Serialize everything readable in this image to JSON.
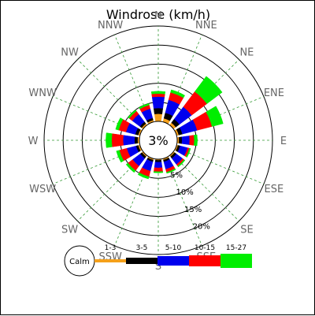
{
  "chart_data": {
    "type": "windrose",
    "title": "Windrose (km/h)",
    "calm_label": "3%",
    "calm_percent": 3,
    "directions": [
      "N",
      "NNE",
      "NE",
      "ENE",
      "E",
      "ESE",
      "SE",
      "SSE",
      "S",
      "SSW",
      "SW",
      "WSW",
      "W",
      "WNW",
      "NW",
      "NNW"
    ],
    "ring_labels": [
      "5%",
      "10%",
      "15%",
      "20%"
    ],
    "rings": [
      5,
      10,
      15,
      20
    ],
    "max_percent": 25,
    "speed_bins": [
      {
        "label": "1-3",
        "color": "#f5a01a"
      },
      {
        "label": "3-5",
        "color": "#000000"
      },
      {
        "label": "5-10",
        "color": "#0000ee"
      },
      {
        "label": "10-15",
        "color": "#ff0000"
      },
      {
        "label": "15-27",
        "color": "#00ee00"
      }
    ],
    "series": [
      {
        "name": "1-3",
        "values": [
          2.0,
          1.0,
          0.8,
          0.6,
          0.5,
          0.4,
          0.4,
          0.4,
          0.3,
          0.4,
          0.4,
          0.5,
          0.5,
          0.5,
          0.5,
          0.5
        ]
      },
      {
        "name": "3-5",
        "values": [
          1.5,
          1.5,
          1.2,
          1.0,
          0.8,
          0.6,
          0.6,
          0.5,
          0.5,
          0.5,
          0.6,
          0.6,
          0.8,
          0.8,
          0.6,
          0.6
        ]
      },
      {
        "name": "5-10",
        "values": [
          3.0,
          3.5,
          4.0,
          4.0,
          2.0,
          2.0,
          2.0,
          2.0,
          1.5,
          2.5,
          2.5,
          2.5,
          3.0,
          2.5,
          2.5,
          2.5
        ]
      },
      {
        "name": "10-15",
        "values": [
          0.8,
          2.0,
          5.0,
          4.0,
          1.2,
          0.5,
          0.5,
          0.8,
          1.0,
          1.5,
          1.5,
          2.0,
          3.0,
          2.0,
          1.0,
          1.0
        ]
      },
      {
        "name": "15-27",
        "values": [
          0.6,
          0.7,
          5.0,
          3.0,
          0.8,
          0.3,
          0.3,
          0.3,
          0.3,
          0.6,
          0.6,
          0.8,
          1.5,
          0.8,
          0.4,
          0.4
        ]
      }
    ],
    "legend_calm_label": "Calm",
    "grid": true
  }
}
